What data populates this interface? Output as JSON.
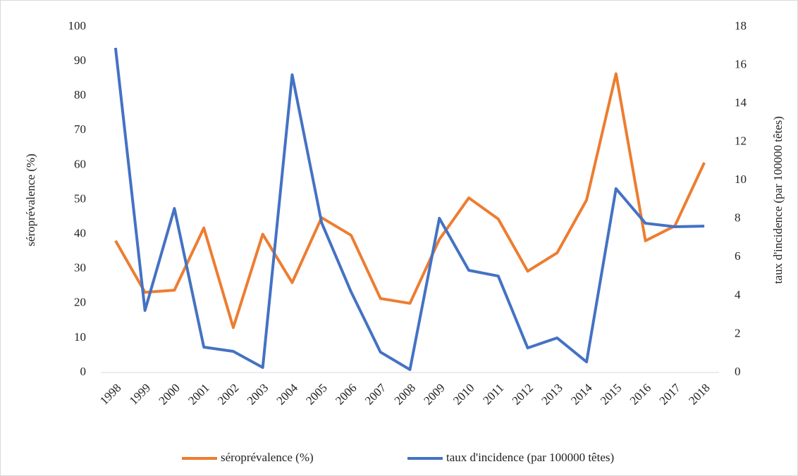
{
  "chart_data": {
    "type": "line",
    "categories": [
      "1998",
      "1999",
      "2000",
      "2001",
      "2002",
      "2003",
      "2004",
      "2005",
      "2006",
      "2007",
      "2008",
      "2009",
      "2010",
      "2011",
      "2012",
      "2013",
      "2014",
      "2015",
      "2016",
      "2017",
      "2018"
    ],
    "ylabel": "séroprévalence (%)",
    "y2label": "taux d'incidence (par 100000 têtes)",
    "ylim": [
      0,
      100
    ],
    "yticks": [
      0,
      10,
      20,
      30,
      40,
      50,
      60,
      70,
      80,
      90,
      100
    ],
    "y2lim": [
      0,
      18
    ],
    "y2ticks": [
      0,
      2,
      4,
      6,
      8,
      10,
      12,
      14,
      16,
      18
    ],
    "series": [
      {
        "name": "séroprévalence (%)",
        "color": "#ed7d31",
        "values": [
          38.1,
          23.2,
          23.8,
          41.8,
          13,
          40,
          26,
          44.8,
          39.7,
          21.4,
          20,
          38.5,
          50.5,
          44.4,
          29.3,
          34.6,
          49.9,
          86.4,
          38.1,
          42.4,
          60.7
        ]
      },
      {
        "name": "taux d'incidence (par 100000 têtes)",
        "color": "#4472c4",
        "axis": "y2",
        "values": [
          16.9,
          3.23,
          8.54,
          1.32,
          1.1,
          0.26,
          15.5,
          7.8,
          4.2,
          1.06,
          0.15,
          8.03,
          5.32,
          5.02,
          1.28,
          1.8,
          0.55,
          9.57,
          7.77,
          7.59,
          7.62
        ]
      }
    ]
  }
}
